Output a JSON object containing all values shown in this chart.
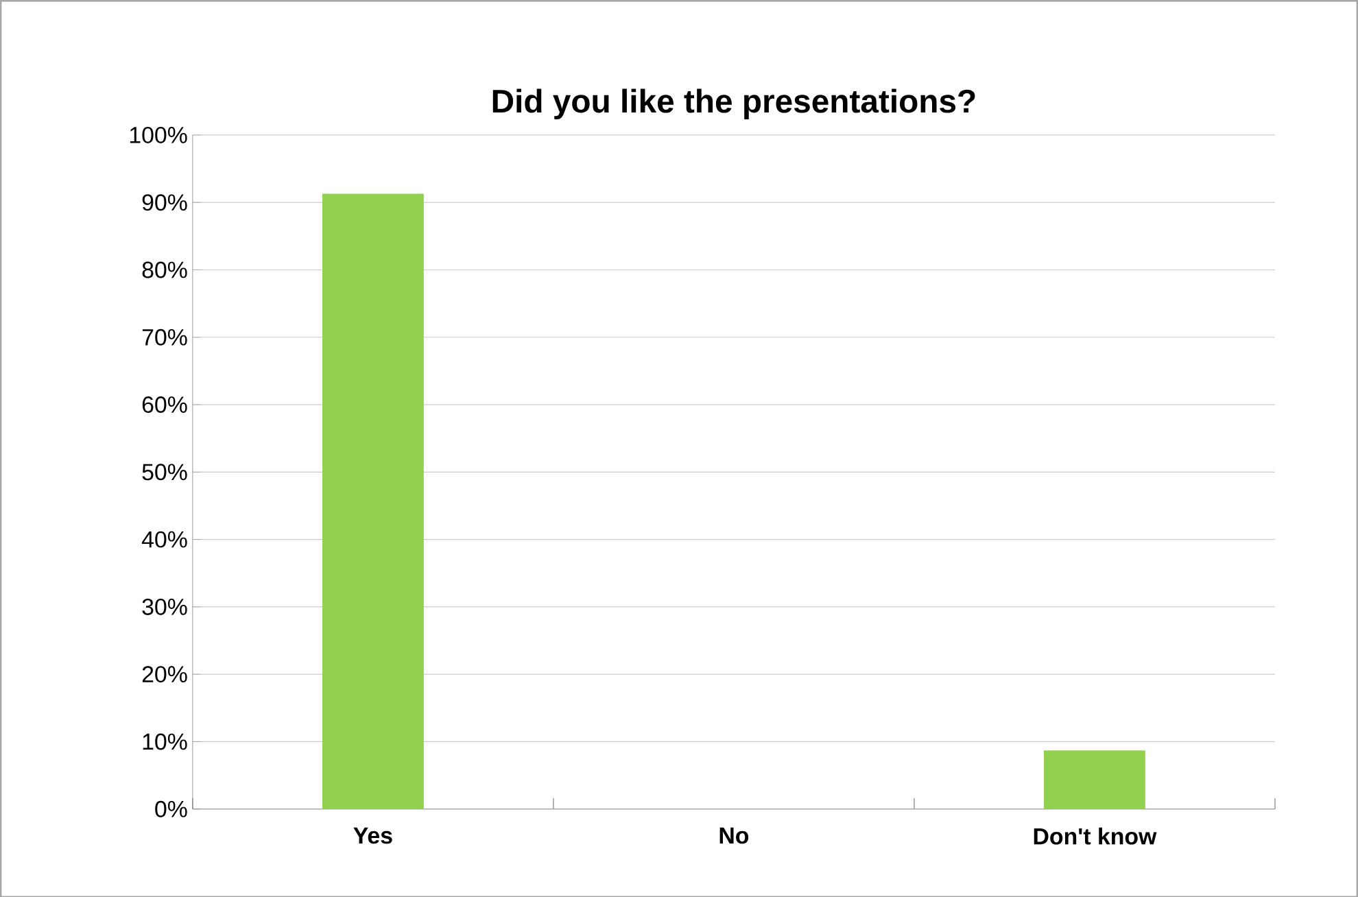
{
  "chart_data": {
    "type": "bar",
    "title": "Did you like the presentations?",
    "categories": [
      "Yes",
      "No",
      "Don't know"
    ],
    "values": [
      91.3,
      0,
      8.7
    ],
    "color": "#92d050",
    "ylim": [
      0,
      100
    ],
    "yticks": [
      {
        "value": 0,
        "label": "0%"
      },
      {
        "value": 10,
        "label": "10%"
      },
      {
        "value": 20,
        "label": "20%"
      },
      {
        "value": 30,
        "label": "30%"
      },
      {
        "value": 40,
        "label": "40%"
      },
      {
        "value": 50,
        "label": "50%"
      },
      {
        "value": 60,
        "label": "60%"
      },
      {
        "value": 70,
        "label": "70%"
      },
      {
        "value": 80,
        "label": "80%"
      },
      {
        "value": 90,
        "label": "90%"
      },
      {
        "value": 100,
        "label": "100%"
      }
    ],
    "grid": "y"
  }
}
